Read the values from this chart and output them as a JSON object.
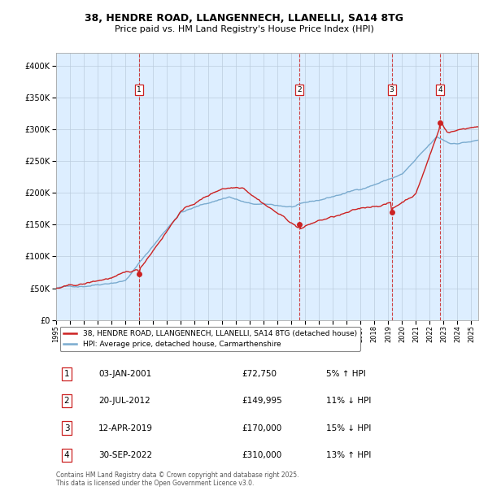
{
  "title": "38, HENDRE ROAD, LLANGENNECH, LLANELLI, SA14 8TG",
  "subtitle": "Price paid vs. HM Land Registry's House Price Index (HPI)",
  "legend_line1": "38, HENDRE ROAD, LLANGENNECH, LLANELLI, SA14 8TG (detached house)",
  "legend_line2": "HPI: Average price, detached house, Carmarthenshire",
  "transactions": [
    {
      "num": 1,
      "date": "03-JAN-2001",
      "price": "£72,750",
      "pct": "5% ↑ HPI",
      "decimal_date": 2001.01
    },
    {
      "num": 2,
      "date": "20-JUL-2012",
      "price": "£149,995",
      "pct": "11% ↓ HPI",
      "decimal_date": 2012.55
    },
    {
      "num": 3,
      "date": "12-APR-2019",
      "price": "£170,000",
      "pct": "15% ↓ HPI",
      "decimal_date": 2019.28
    },
    {
      "num": 4,
      "date": "30-SEP-2022",
      "price": "£310,000",
      "pct": "13% ↑ HPI",
      "decimal_date": 2022.75
    }
  ],
  "footer": "Contains HM Land Registry data © Crown copyright and database right 2025.\nThis data is licensed under the Open Government Licence v3.0.",
  "hpi_color": "#7aabcf",
  "price_color": "#cc2222",
  "marker_color": "#cc2222",
  "background_color": "#ddeeff",
  "grid_color": "#bbccdd",
  "vline_color": "#cc2222",
  "ylim": [
    0,
    420000
  ],
  "yticks": [
    0,
    50000,
    100000,
    150000,
    200000,
    250000,
    300000,
    350000,
    400000
  ],
  "xstart": 1995,
  "xend": 2025.5
}
